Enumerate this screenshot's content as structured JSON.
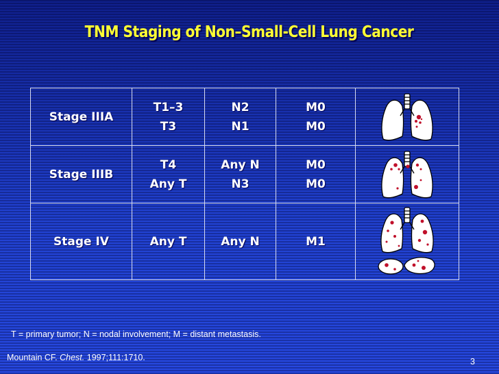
{
  "slide": {
    "title": "TNM Staging of Non–Small-Cell Lung Cancer",
    "footnote": "T = primary tumor; N = nodal involvement; M = distant metastasis.",
    "citation": {
      "author": "Mountain CF. ",
      "journal": "Chest.",
      "rest": " 1997;111:1710."
    },
    "page_number": "3",
    "colors": {
      "title": "#ffff33",
      "background": "#1b38c8",
      "text": "#ffffff",
      "tumor": "#c0102a"
    }
  },
  "table": {
    "rows": [
      {
        "stage": "Stage IIIA",
        "t": [
          "T1–3",
          "T3"
        ],
        "n": [
          "N2",
          "N1"
        ],
        "m": [
          "M0",
          "M0"
        ],
        "icon": "lungs-stage-iiia-icon"
      },
      {
        "stage": "Stage IIIB",
        "t": [
          "T4",
          "Any T"
        ],
        "n": [
          "Any N",
          "N3"
        ],
        "m": [
          "M0",
          "M0"
        ],
        "icon": "lungs-stage-iiib-icon"
      },
      {
        "stage": "Stage IV",
        "t": [
          "Any T"
        ],
        "n": [
          "Any N"
        ],
        "m": [
          "M1"
        ],
        "icon": "lungs-stage-iv-icon"
      }
    ]
  }
}
